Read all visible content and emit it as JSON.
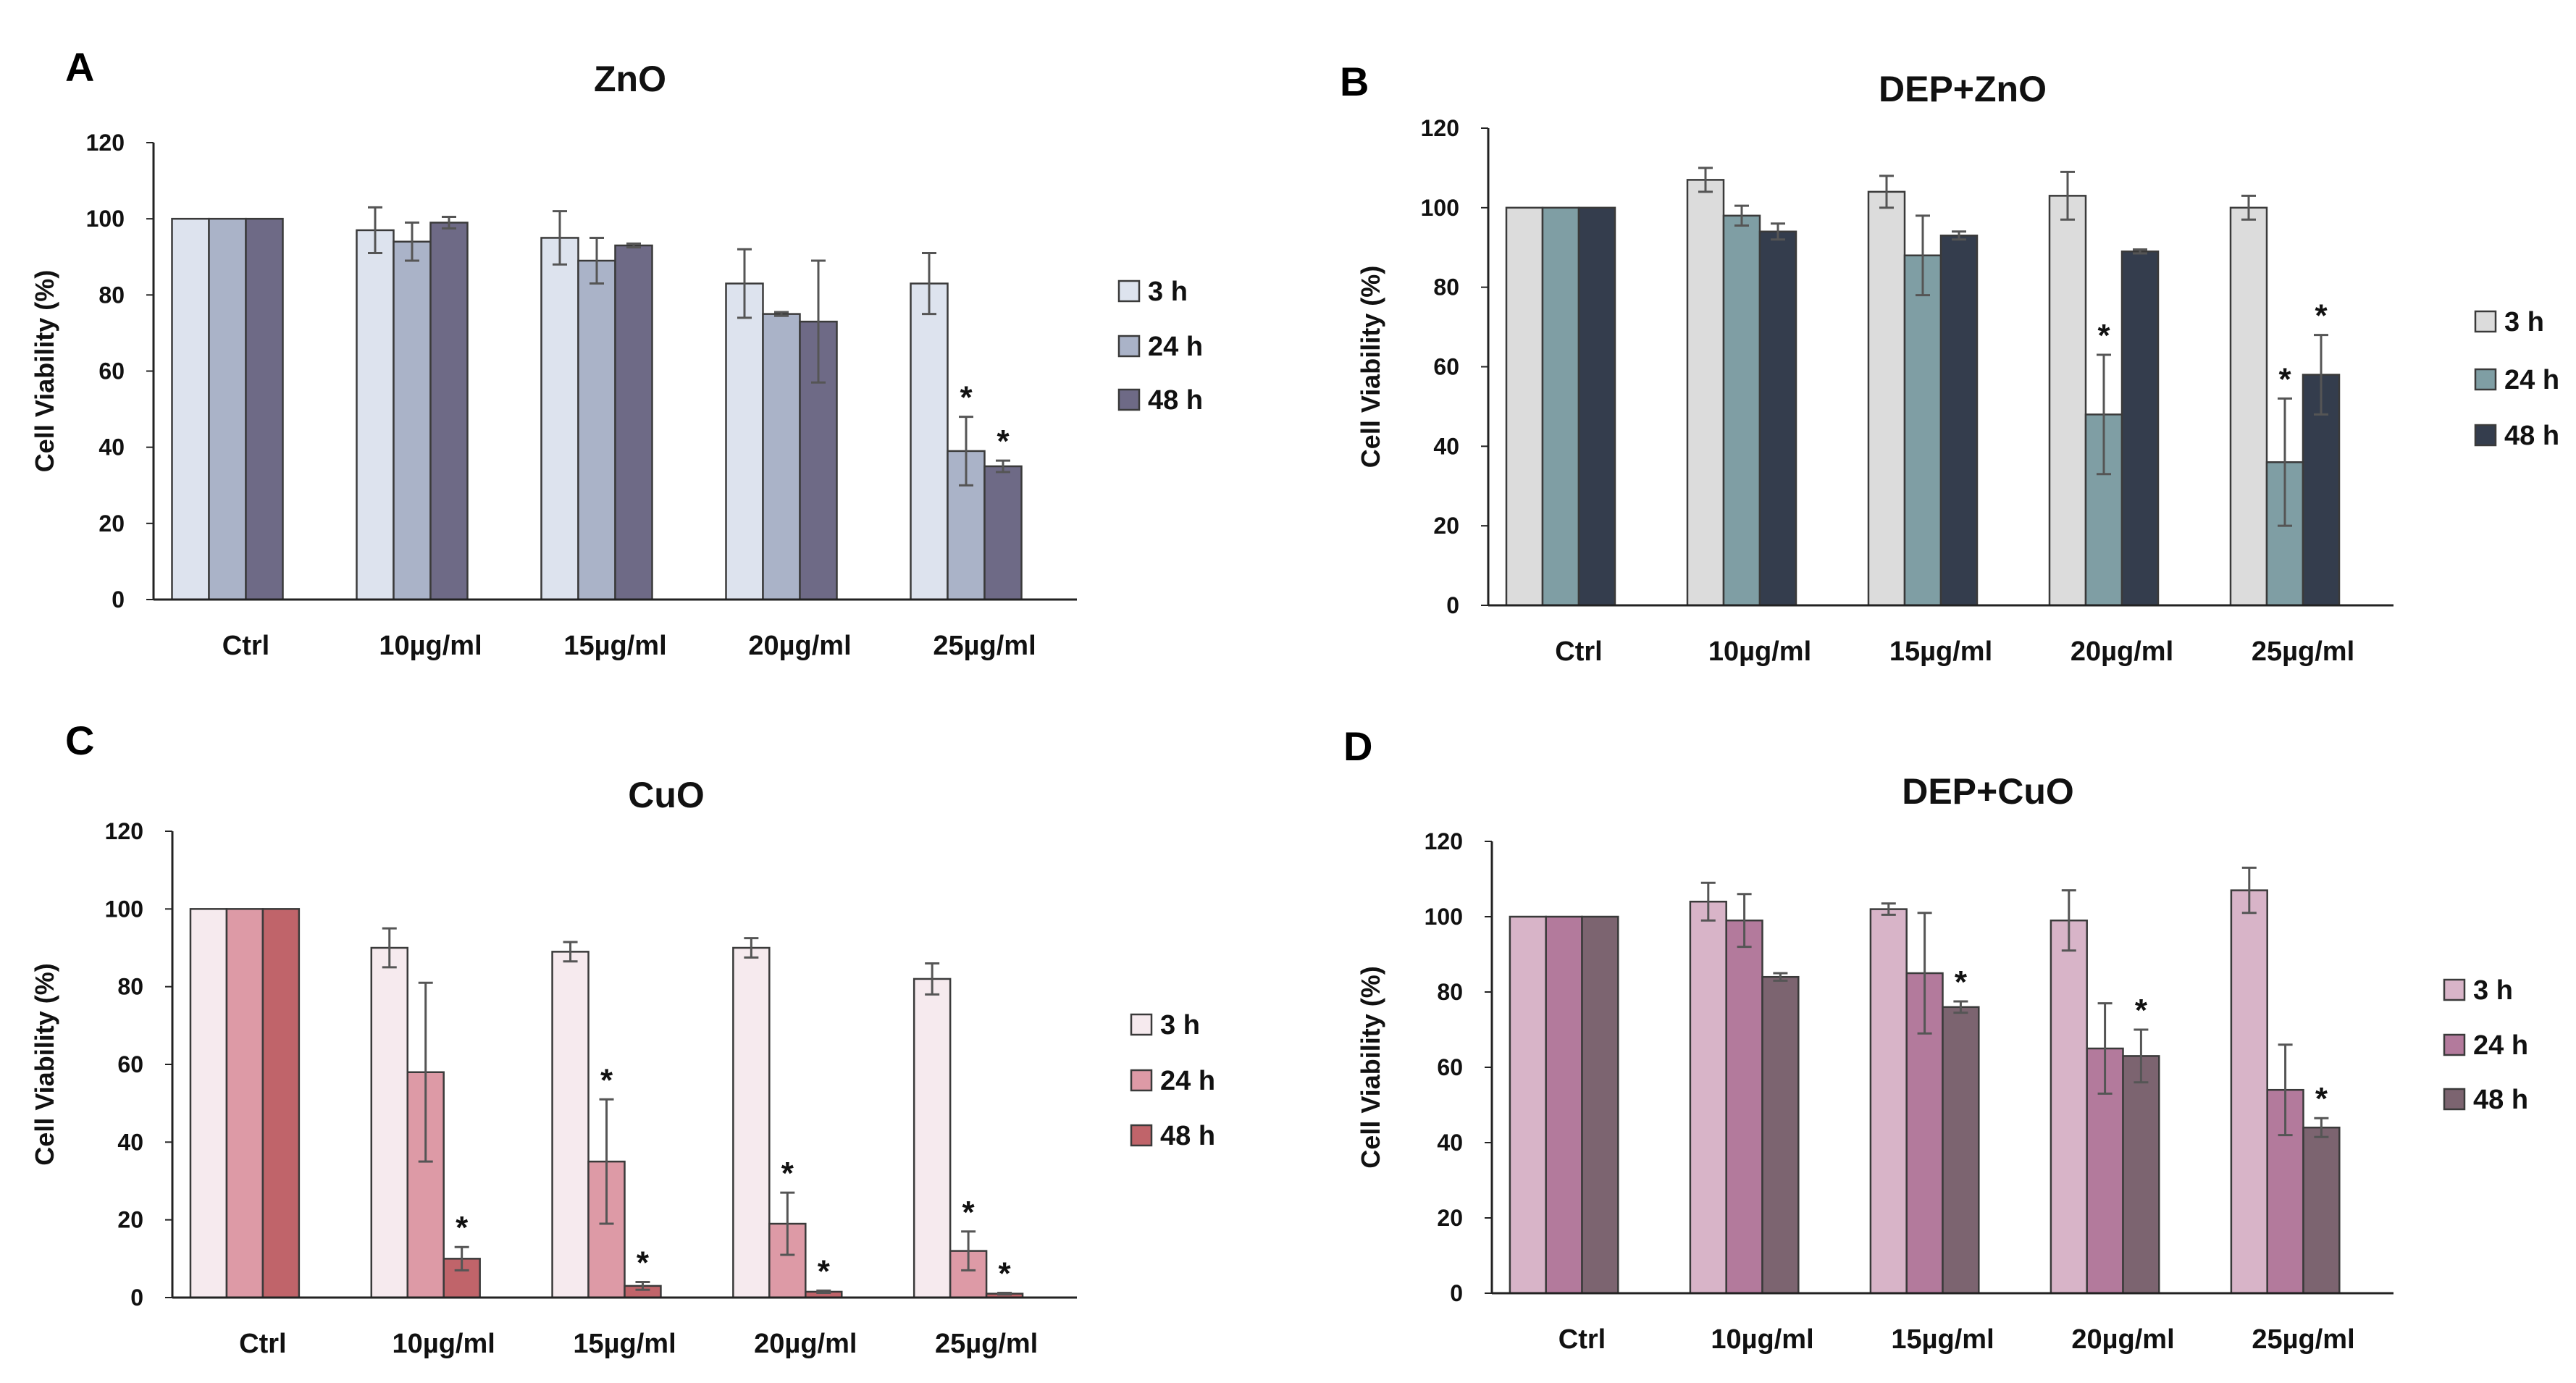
{
  "chart_data": [
    {
      "type": "bar",
      "panel": "A",
      "title": "ZnO",
      "ylabel": "Cell Viability (%)",
      "xlabel": "",
      "ylim": [
        0,
        120
      ],
      "yticks": [
        0,
        20,
        40,
        60,
        80,
        100,
        120
      ],
      "categories": [
        "Ctrl",
        "10µg/ml",
        "15µg/ml",
        "20µg/ml",
        "25µg/ml"
      ],
      "legend_position": "right",
      "series": [
        {
          "name": "3 h",
          "color": "#dde3ee",
          "values": [
            100,
            97,
            95,
            83,
            83
          ],
          "errors": [
            0,
            6,
            7,
            9,
            8
          ],
          "significant": [
            false,
            false,
            false,
            false,
            false
          ]
        },
        {
          "name": "24 h",
          "color": "#aab3c8",
          "values": [
            100,
            94,
            89,
            75,
            39
          ],
          "errors": [
            0,
            5,
            6,
            0.5,
            9
          ],
          "significant": [
            false,
            false,
            false,
            false,
            true
          ]
        },
        {
          "name": "48 h",
          "color": "#6e6a86",
          "values": [
            100,
            99,
            93,
            73,
            35
          ],
          "errors": [
            0,
            1.5,
            0.5,
            16,
            1.5
          ],
          "significant": [
            false,
            false,
            false,
            false,
            true
          ]
        }
      ]
    },
    {
      "type": "bar",
      "panel": "B",
      "title": "DEP+ZnO",
      "ylabel": "Cell Viability (%)",
      "xlabel": "",
      "ylim": [
        0,
        120
      ],
      "yticks": [
        0,
        20,
        40,
        60,
        80,
        100,
        120
      ],
      "categories": [
        "Ctrl",
        "10µg/ml",
        "15µg/ml",
        "20µg/ml",
        "25µg/ml"
      ],
      "legend_position": "right",
      "series": [
        {
          "name": "3 h",
          "color": "#dcdcdc",
          "values": [
            100,
            107,
            104,
            103,
            100
          ],
          "errors": [
            0,
            3,
            4,
            6,
            3
          ],
          "significant": [
            false,
            false,
            false,
            false,
            false
          ]
        },
        {
          "name": "24 h",
          "color": "#7f9ea4",
          "values": [
            100,
            98,
            88,
            48,
            36
          ],
          "errors": [
            0,
            2.5,
            10,
            15,
            16
          ],
          "significant": [
            false,
            false,
            false,
            true,
            true
          ]
        },
        {
          "name": "48 h",
          "color": "#343d4d",
          "values": [
            100,
            94,
            93,
            89,
            58
          ],
          "errors": [
            0,
            2,
            1,
            0.5,
            10
          ],
          "significant": [
            false,
            false,
            false,
            false,
            true
          ]
        }
      ]
    },
    {
      "type": "bar",
      "panel": "C",
      "title": "CuO",
      "ylabel": "Cell Viability (%)",
      "xlabel": "",
      "ylim": [
        0,
        120
      ],
      "yticks": [
        0,
        20,
        40,
        60,
        80,
        100,
        120
      ],
      "categories": [
        "Ctrl",
        "10µg/ml",
        "15µg/ml",
        "20µg/ml",
        "25µg/ml"
      ],
      "legend_position": "right",
      "series": [
        {
          "name": "3 h",
          "color": "#f6eaee",
          "values": [
            100,
            90,
            89,
            90,
            82
          ],
          "errors": [
            0,
            5,
            2.5,
            2.5,
            4
          ],
          "significant": [
            false,
            false,
            false,
            false,
            false
          ]
        },
        {
          "name": "24 h",
          "color": "#dd9aa6",
          "values": [
            100,
            58,
            35,
            19,
            12
          ],
          "errors": [
            0,
            23,
            16,
            8,
            5
          ],
          "significant": [
            false,
            false,
            true,
            true,
            true
          ]
        },
        {
          "name": "48 h",
          "color": "#c0646a",
          "values": [
            100,
            10,
            3,
            1.5,
            1
          ],
          "errors": [
            0,
            3,
            1,
            0.3,
            0.2
          ],
          "significant": [
            false,
            true,
            true,
            true,
            true
          ]
        }
      ]
    },
    {
      "type": "bar",
      "panel": "D",
      "title": "DEP+CuO",
      "ylabel": "Cell Viability (%)",
      "xlabel": "",
      "ylim": [
        0,
        120
      ],
      "yticks": [
        0,
        20,
        40,
        60,
        80,
        100,
        120
      ],
      "categories": [
        "Ctrl",
        "10µg/ml",
        "15µg/ml",
        "20µg/ml",
        "25µg/ml"
      ],
      "legend_position": "right",
      "series": [
        {
          "name": "3 h",
          "color": "#d8b4c8",
          "values": [
            100,
            104,
            102,
            99,
            107
          ],
          "errors": [
            0,
            5,
            1.5,
            8,
            6
          ],
          "significant": [
            false,
            false,
            false,
            false,
            false
          ]
        },
        {
          "name": "24 h",
          "color": "#b37a9c",
          "values": [
            100,
            99,
            85,
            65,
            54
          ],
          "errors": [
            0,
            7,
            16,
            12,
            12
          ],
          "significant": [
            false,
            false,
            false,
            false,
            false
          ]
        },
        {
          "name": "48 h",
          "color": "#7c6470",
          "values": [
            100,
            84,
            76,
            63,
            44
          ],
          "errors": [
            0,
            1,
            1.5,
            7,
            2.5
          ],
          "significant": [
            false,
            false,
            true,
            true,
            true
          ]
        }
      ]
    }
  ]
}
